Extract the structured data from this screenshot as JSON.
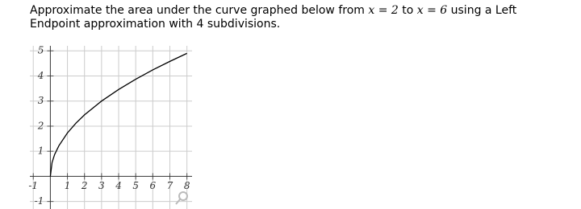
{
  "question": {
    "parts": [
      "Approximate the area under the curve graphed below from ",
      "x = 2",
      " to ",
      "x = 6",
      " using a Left Endpoint approximation with 4 subdivisions."
    ]
  },
  "chart_data": {
    "type": "line",
    "x": [
      0,
      0.1,
      0.25,
      0.5,
      1,
      1.5,
      2,
      3,
      4,
      5,
      6,
      7,
      8
    ],
    "values": [
      0,
      0.55,
      0.87,
      1.22,
      1.73,
      2.12,
      2.45,
      3,
      3.46,
      3.87,
      4.24,
      4.58,
      4.9
    ],
    "color": "#000000",
    "xlim": [
      -1.2,
      8.3
    ],
    "ylim": [
      -1.3,
      5.2
    ],
    "xticks": [
      -1,
      1,
      2,
      3,
      4,
      5,
      6,
      7,
      8
    ],
    "yticks": [
      -1,
      1,
      2,
      3,
      4,
      5
    ],
    "grid": true
  }
}
